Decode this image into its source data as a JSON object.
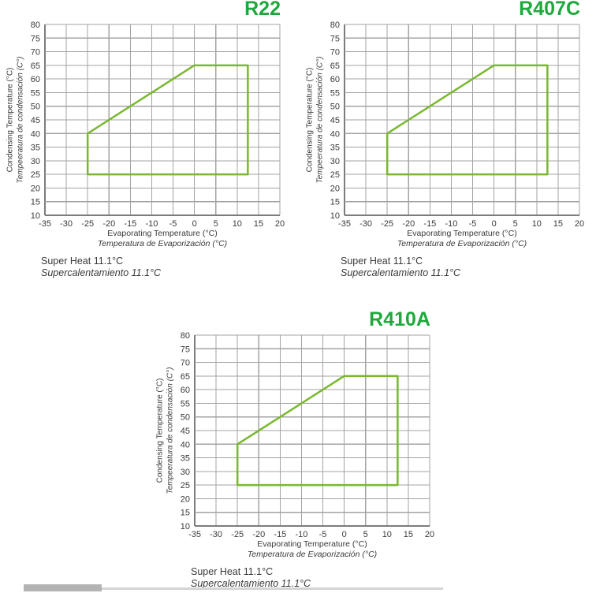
{
  "colors": {
    "title_green": "#1fa83c",
    "envelope_green": "#79b82f",
    "grid": "#a3a3a3",
    "axis": "#7c7c7c",
    "text": "#3a3a3a"
  },
  "chart_data": [
    {
      "type": "line",
      "title": "R22",
      "xlabel": "Evaporating Temperature (°C)",
      "xlabel_alt": "Temperatura de Evaporización (°C)",
      "ylabel": "Condensing Temperature (°C)",
      "ylabel_alt": "Tempeeratura de condensación (C°)",
      "xlim": [
        -35,
        20
      ],
      "ylim": [
        10,
        80
      ],
      "xticks": [
        -35,
        -30,
        -25,
        -20,
        -15,
        -10,
        -5,
        0,
        5,
        10,
        15,
        20
      ],
      "yticks": [
        10,
        15,
        20,
        25,
        30,
        35,
        40,
        45,
        50,
        55,
        60,
        65,
        70,
        75,
        80
      ],
      "grid": true,
      "legend": "none",
      "series": [
        {
          "name": "operating-envelope",
          "closed": true,
          "points": [
            [
              -25,
              25
            ],
            [
              -25,
              40
            ],
            [
              0,
              65
            ],
            [
              12.5,
              65
            ],
            [
              12.5,
              25
            ]
          ]
        }
      ],
      "note_en": "Super Heat 11.1°C",
      "note_es": "Supercalentamiento 11.1°C"
    },
    {
      "type": "line",
      "title": "R407C",
      "xlabel": "Evaporating Temperature (°C)",
      "xlabel_alt": "Temperatura de Evaporización (°C)",
      "ylabel": "Condensing Temperature (°C)",
      "ylabel_alt": "Tempeeratura de condensación (C°)",
      "xlim": [
        -35,
        20
      ],
      "ylim": [
        10,
        80
      ],
      "xticks": [
        -35,
        -30,
        -25,
        -20,
        -15,
        -10,
        -5,
        0,
        5,
        10,
        15,
        20
      ],
      "yticks": [
        10,
        15,
        20,
        25,
        30,
        35,
        40,
        45,
        50,
        55,
        60,
        65,
        70,
        75,
        80
      ],
      "grid": true,
      "legend": "none",
      "series": [
        {
          "name": "operating-envelope",
          "closed": true,
          "points": [
            [
              -25,
              25
            ],
            [
              -25,
              40
            ],
            [
              0,
              65
            ],
            [
              12.5,
              65
            ],
            [
              12.5,
              25
            ]
          ]
        }
      ],
      "note_en": "Super Heat 11.1°C",
      "note_es": "Supercalentamiento 11.1°C"
    },
    {
      "type": "line",
      "title": "R410A",
      "xlabel": "Evaporating Temperature (°C)",
      "xlabel_alt": "Temperatura de Evaporización (°C)",
      "ylabel": "Condensing Temperature (°C)",
      "ylabel_alt": "Tempeeratura de condensación (C°)",
      "xlim": [
        -35,
        20
      ],
      "ylim": [
        10,
        80
      ],
      "xticks": [
        -35,
        -30,
        -25,
        -20,
        -15,
        -10,
        -5,
        0,
        5,
        10,
        15,
        20
      ],
      "yticks": [
        10,
        15,
        20,
        25,
        30,
        35,
        40,
        45,
        50,
        55,
        60,
        65,
        70,
        75,
        80
      ],
      "grid": true,
      "legend": "none",
      "series": [
        {
          "name": "operating-envelope",
          "closed": true,
          "points": [
            [
              -25,
              25
            ],
            [
              -25,
              40
            ],
            [
              0,
              65
            ],
            [
              12.5,
              65
            ],
            [
              12.5,
              25
            ]
          ]
        }
      ],
      "note_en": "Super Heat 11.1°C",
      "note_es": "Supercalentamiento 11.1°C"
    }
  ]
}
